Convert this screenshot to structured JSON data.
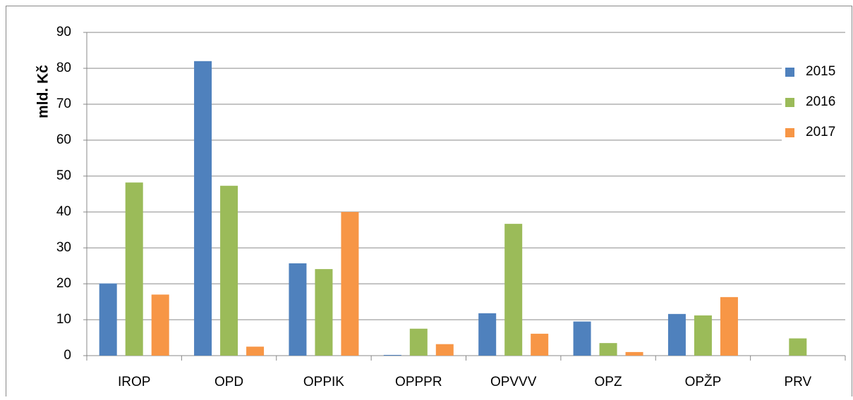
{
  "chart_data": {
    "type": "bar",
    "y_label": "mld. Kč",
    "categories": [
      "IROP",
      "OPD",
      "OPPIK",
      "OPPPR",
      "OPVVV",
      "OPZ",
      "OPŽP",
      "PRV"
    ],
    "series": [
      {
        "name": "2015",
        "color": "#4f81bd",
        "values": [
          20.1,
          82,
          25.7,
          0.2,
          11.8,
          9.5,
          11.6,
          0
        ]
      },
      {
        "name": "2016",
        "color": "#9bbb59",
        "values": [
          48.2,
          47.3,
          24.1,
          7.5,
          36.7,
          3.5,
          11.2,
          4.8
        ]
      },
      {
        "name": "2017",
        "color": "#f79646",
        "values": [
          17,
          2.5,
          40,
          3.2,
          6.1,
          1,
          16.3,
          0
        ]
      }
    ],
    "ylim": [
      0,
      90
    ],
    "yticks": [
      0,
      10,
      20,
      30,
      40,
      50,
      60,
      70,
      80,
      90
    ],
    "grid": true,
    "legend": "right"
  }
}
